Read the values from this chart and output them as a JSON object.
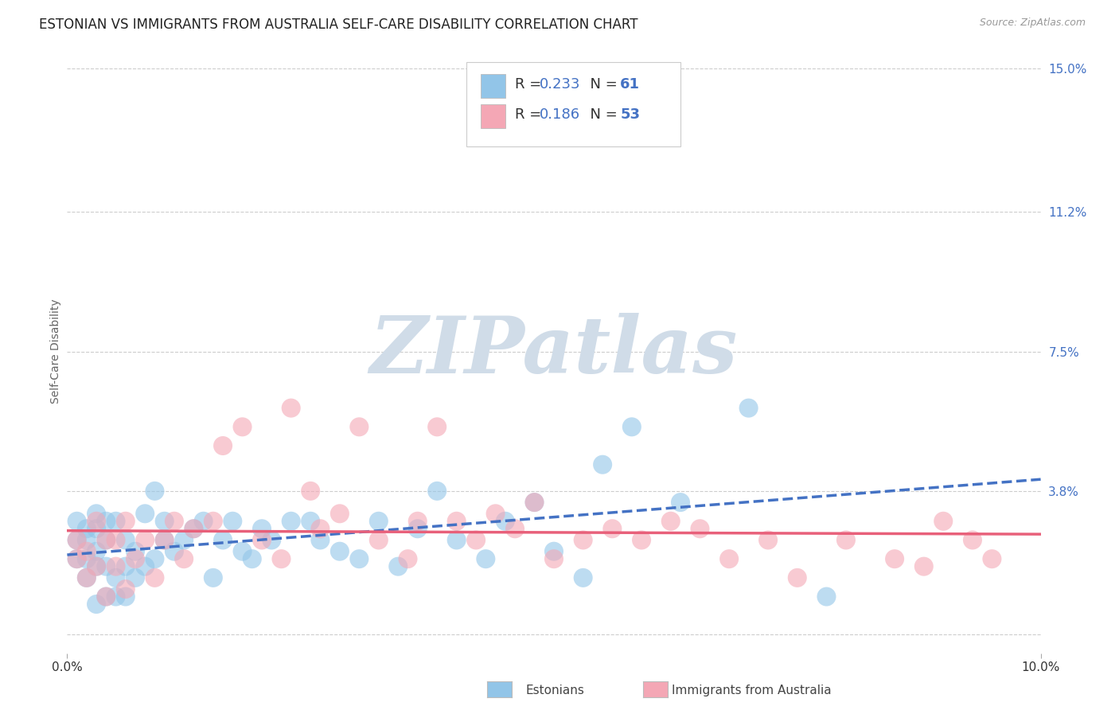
{
  "title": "ESTONIAN VS IMMIGRANTS FROM AUSTRALIA SELF-CARE DISABILITY CORRELATION CHART",
  "source": "Source: ZipAtlas.com",
  "ylabel": "Self-Care Disability",
  "xlim": [
    0.0,
    0.1
  ],
  "ylim": [
    -0.005,
    0.155
  ],
  "ytick_values": [
    0.0,
    0.038,
    0.075,
    0.112,
    0.15
  ],
  "ytick_labels": [
    "",
    "3.8%",
    "7.5%",
    "11.2%",
    "15.0%"
  ],
  "legend_R1": "R = 0.233",
  "legend_N1": "N = 61",
  "legend_R2": "R = 0.186",
  "legend_N2": "N = 53",
  "estonians_color": "#92C5E8",
  "immigrants_color": "#F4A7B5",
  "trend_estonian_color": "#4472C4",
  "trend_immigrant_color": "#E8607A",
  "background_color": "#ffffff",
  "grid_color": "#c8c8c8",
  "watermark": "ZIPatlas",
  "watermark_color": "#D0DCE8",
  "title_fontsize": 12,
  "ytick_color": "#4472C4",
  "xtick_color": "#333333",
  "estonians_x": [
    0.001,
    0.001,
    0.001,
    0.002,
    0.002,
    0.002,
    0.002,
    0.003,
    0.003,
    0.003,
    0.003,
    0.003,
    0.004,
    0.004,
    0.004,
    0.004,
    0.005,
    0.005,
    0.005,
    0.006,
    0.006,
    0.006,
    0.007,
    0.007,
    0.008,
    0.008,
    0.009,
    0.009,
    0.01,
    0.01,
    0.011,
    0.012,
    0.013,
    0.014,
    0.015,
    0.016,
    0.017,
    0.018,
    0.019,
    0.02,
    0.021,
    0.023,
    0.025,
    0.026,
    0.028,
    0.03,
    0.032,
    0.034,
    0.036,
    0.038,
    0.04,
    0.043,
    0.045,
    0.048,
    0.05,
    0.053,
    0.055,
    0.058,
    0.063,
    0.07,
    0.078
  ],
  "estonians_y": [
    0.02,
    0.025,
    0.03,
    0.015,
    0.02,
    0.025,
    0.028,
    0.008,
    0.018,
    0.022,
    0.028,
    0.032,
    0.01,
    0.018,
    0.025,
    0.03,
    0.01,
    0.015,
    0.03,
    0.01,
    0.018,
    0.025,
    0.015,
    0.022,
    0.018,
    0.032,
    0.02,
    0.038,
    0.025,
    0.03,
    0.022,
    0.025,
    0.028,
    0.03,
    0.015,
    0.025,
    0.03,
    0.022,
    0.02,
    0.028,
    0.025,
    0.03,
    0.03,
    0.025,
    0.022,
    0.02,
    0.03,
    0.018,
    0.028,
    0.038,
    0.025,
    0.02,
    0.03,
    0.035,
    0.022,
    0.015,
    0.045,
    0.055,
    0.035,
    0.06,
    0.01
  ],
  "immigrants_x": [
    0.001,
    0.001,
    0.002,
    0.002,
    0.003,
    0.003,
    0.004,
    0.004,
    0.005,
    0.005,
    0.006,
    0.006,
    0.007,
    0.008,
    0.009,
    0.01,
    0.011,
    0.012,
    0.013,
    0.015,
    0.016,
    0.018,
    0.02,
    0.022,
    0.023,
    0.025,
    0.026,
    0.028,
    0.03,
    0.032,
    0.035,
    0.036,
    0.038,
    0.04,
    0.042,
    0.044,
    0.046,
    0.048,
    0.05,
    0.053,
    0.056,
    0.059,
    0.062,
    0.065,
    0.068,
    0.072,
    0.075,
    0.08,
    0.085,
    0.088,
    0.09,
    0.093,
    0.095
  ],
  "immigrants_y": [
    0.02,
    0.025,
    0.015,
    0.022,
    0.018,
    0.03,
    0.025,
    0.01,
    0.018,
    0.025,
    0.03,
    0.012,
    0.02,
    0.025,
    0.015,
    0.025,
    0.03,
    0.02,
    0.028,
    0.03,
    0.05,
    0.055,
    0.025,
    0.02,
    0.06,
    0.038,
    0.028,
    0.032,
    0.055,
    0.025,
    0.02,
    0.03,
    0.055,
    0.03,
    0.025,
    0.032,
    0.028,
    0.035,
    0.02,
    0.025,
    0.028,
    0.025,
    0.03,
    0.028,
    0.02,
    0.025,
    0.015,
    0.025,
    0.02,
    0.018,
    0.03,
    0.025,
    0.02
  ]
}
